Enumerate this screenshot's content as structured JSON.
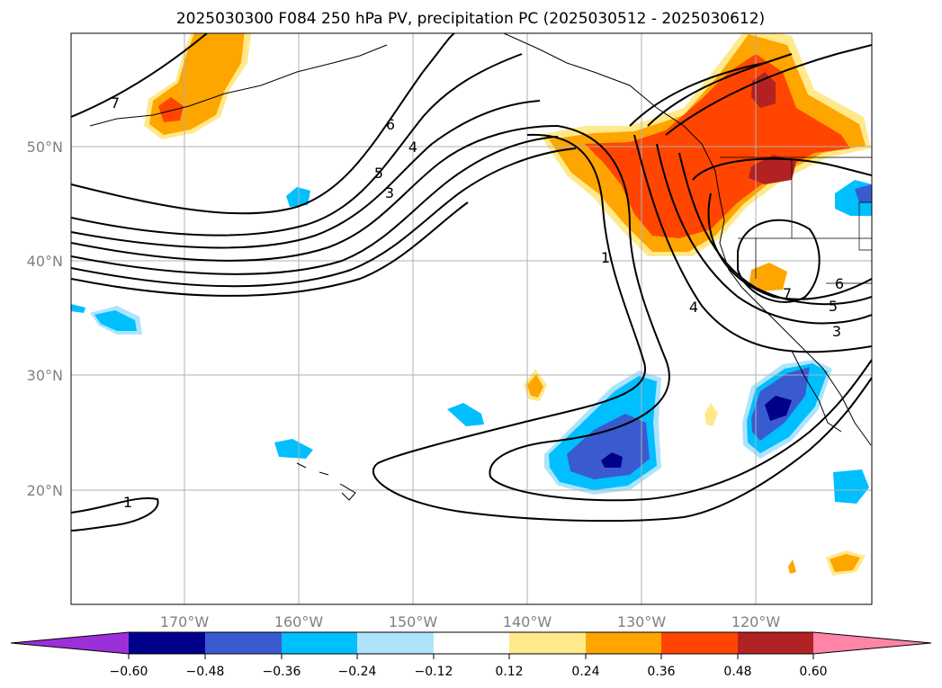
{
  "title": "2025030300 F084 250 hPa PV, precipitation PC (2025030512 - 2025030612)",
  "map": {
    "lat_labels": [
      "50°N",
      "40°N",
      "30°N",
      "20°N"
    ],
    "lon_labels": [
      "170°W",
      "160°W",
      "150°W",
      "140°W",
      "130°W",
      "120°W"
    ],
    "pv_contour_labels": [
      "7",
      "6",
      "5",
      "4",
      "3",
      "1",
      "1",
      "4",
      "3",
      "6",
      "5",
      "7"
    ]
  },
  "colorbar": {
    "tick_labels": [
      "−0.60",
      "−0.48",
      "−0.36",
      "−0.24",
      "−0.12",
      "0.12",
      "0.24",
      "0.36",
      "0.48",
      "0.60"
    ],
    "colors": [
      "#9b30d9",
      "#00008b",
      "#3a5bd0",
      "#00bfff",
      "#aee4fb",
      "#ffffff",
      "#ffe98a",
      "#ffa500",
      "#ff4500",
      "#b22222",
      "#ff85a8"
    ]
  },
  "colors": {
    "neg_light": "#aee4fb",
    "neg_mid": "#00bfff",
    "neg_dark": "#3a5bd0",
    "neg_deep": "#00008b",
    "pos_light": "#ffe98a",
    "pos_mid": "#ffa500",
    "pos_strong": "#ff4500",
    "pos_dark": "#b22222"
  }
}
